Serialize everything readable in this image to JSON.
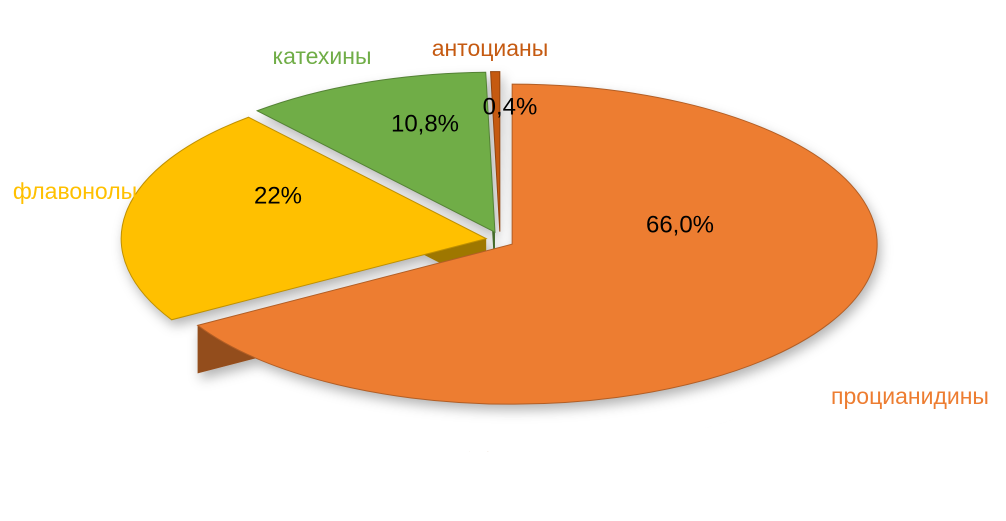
{
  "chart_data": {
    "type": "pie",
    "categories": [
      "процианидины",
      "флавонолы",
      "катехины",
      "антоцианы"
    ],
    "values": [
      66.0,
      22,
      10.8,
      0.4
    ],
    "value_labels": [
      "66,0%",
      "22%",
      "10,8%",
      "0,4%"
    ],
    "colors": [
      "#ed7d31",
      "#ffc000",
      "#70ad47",
      "#c55a11"
    ]
  }
}
